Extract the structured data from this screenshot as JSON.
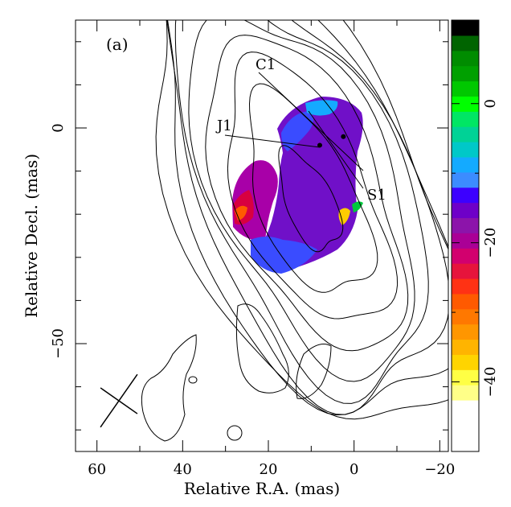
{
  "chart_data": {
    "type": "heatmap",
    "panel_label": "(a)",
    "xlabel": "Relative R.A. (mas)",
    "ylabel": "Relative Decl. (mas)",
    "xlim": [
      65,
      -22
    ],
    "ylim": [
      -75,
      25
    ],
    "x_ticks": [
      {
        "value": 60,
        "label": "60"
      },
      {
        "value": 40,
        "label": "40"
      },
      {
        "value": 20,
        "label": "20"
      },
      {
        "value": 0,
        "label": "0"
      },
      {
        "value": -20,
        "label": "−20"
      }
    ],
    "y_ticks": [
      {
        "value": 0,
        "label": "0"
      },
      {
        "value": -50,
        "label": "−50"
      }
    ],
    "colorbar": {
      "range": [
        -50,
        12
      ],
      "ticks": [
        {
          "value": 0,
          "label": "0"
        },
        {
          "value": -20,
          "label": "−20"
        },
        {
          "value": -40,
          "label": "−40"
        }
      ],
      "colors": [
        "#ffffff",
        "#ffff88",
        "#ffff44",
        "#ffd400",
        "#ffb400",
        "#ff9600",
        "#ff7800",
        "#ff5a00",
        "#ff3214",
        "#e6143c",
        "#d2006e",
        "#aa0096",
        "#8c14aa",
        "#6e00c8",
        "#3c00ff",
        "#3c8cff",
        "#14aaff",
        "#00c8c8",
        "#00d296",
        "#00e664",
        "#00ff00",
        "#00c800",
        "#00a000",
        "#008c00",
        "#006400",
        "#000000"
      ]
    },
    "components": [
      {
        "name": "C1",
        "label": "C1",
        "x": 2.5,
        "y": -2
      },
      {
        "name": "J1",
        "label": "J1",
        "x": 8,
        "y": -4
      },
      {
        "name": "S1",
        "label": "S1",
        "x": 0,
        "y": -15
      }
    ],
    "beam": {
      "major": 13,
      "minor": 9,
      "pa_deg": 35,
      "center": [
        55,
        -63
      ]
    },
    "contour_source": {
      "center": [
        10,
        -18
      ],
      "sigma_major": 18,
      "sigma_minor": 9,
      "pa_deg": 30
    },
    "contour_levels": [
      0.003,
      0.006,
      0.012,
      0.025,
      0.05,
      0.1,
      0.2,
      0.4,
      0.8
    ]
  }
}
